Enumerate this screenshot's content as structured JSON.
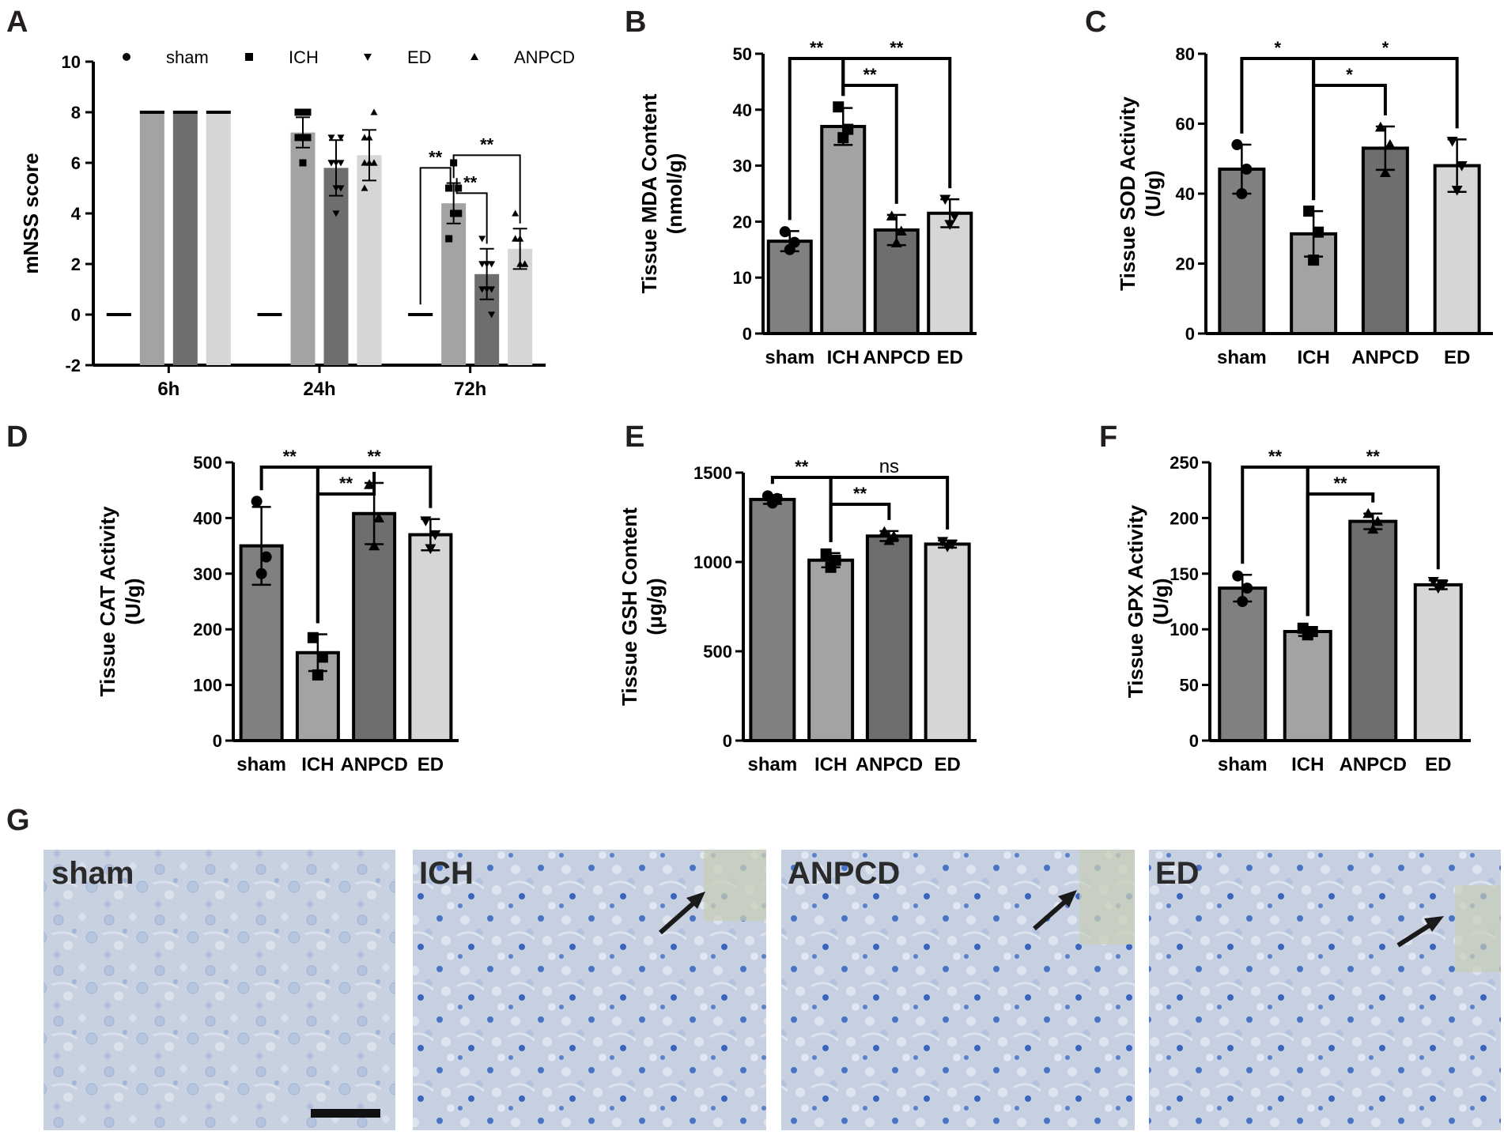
{
  "panel_letters": [
    "A",
    "B",
    "C",
    "D",
    "E",
    "F",
    "G"
  ],
  "colors": {
    "sham": "#808080",
    "ICH": "#a3a3a3",
    "ANPCD": "#6e6e6e",
    "ED": "#d6d6d6",
    "stain_background": "#c9d3e2",
    "stain_cells": "#2f5fbf"
  },
  "chart_data": [
    {
      "panel": "A",
      "type": "bar",
      "ylabel": "mNSS score",
      "xlabel": "",
      "ylim": [
        -2,
        10
      ],
      "yticks": [
        -2,
        0,
        2,
        4,
        6,
        8,
        10
      ],
      "categories": [
        "6h",
        "24h",
        "72h"
      ],
      "legend_position": "top",
      "series": [
        {
          "name": "sham",
          "marker": "circle",
          "values": [
            0,
            0,
            0
          ],
          "errors": [
            0,
            0,
            0
          ]
        },
        {
          "name": "ICH",
          "marker": "square",
          "values": [
            8,
            7.2,
            4.4
          ],
          "errors": [
            0,
            0.6,
            0.8
          ],
          "points": [
            [
              8,
              8,
              8,
              8,
              8,
              8,
              8,
              8,
              8
            ],
            [
              8,
              8,
              7,
              7,
              6,
              8,
              7,
              7,
              7
            ],
            [
              5,
              4,
              4,
              3,
              6,
              4,
              5,
              4,
              5
            ]
          ]
        },
        {
          "name": "ED",
          "marker": "triangle-down",
          "values": [
            8,
            5.8,
            1.6
          ],
          "errors": [
            0,
            1.1,
            1.0
          ],
          "points": [
            [
              8,
              8,
              8,
              8,
              8,
              8,
              8,
              8,
              8
            ],
            [
              7,
              6,
              5,
              6,
              4,
              7,
              6,
              5,
              6
            ],
            [
              3,
              2,
              1,
              2,
              1,
              0,
              1,
              2,
              2
            ]
          ]
        },
        {
          "name": "ANPCD",
          "marker": "triangle-up",
          "values": [
            8,
            6.3,
            2.6
          ],
          "errors": [
            0,
            1.0,
            0.8
          ],
          "points": [
            [
              8,
              8,
              8,
              8,
              8,
              8,
              8,
              8,
              8
            ],
            [
              7,
              7,
              6,
              5,
              6,
              8,
              6,
              6,
              6
            ],
            [
              4,
              3,
              2,
              3,
              2,
              2,
              3,
              3,
              2
            ]
          ]
        }
      ],
      "annotations": [
        {
          "text": "**",
          "group": "72h",
          "from": 0,
          "to": 1
        },
        {
          "text": "**",
          "group": "72h",
          "from": 1,
          "to": 2
        },
        {
          "text": "**",
          "group": "72h",
          "from": 1,
          "to": 3
        }
      ]
    },
    {
      "panel": "B",
      "type": "bar",
      "ylabel": "Tissue MDA Content\n(nmol/g)",
      "xlabel": "",
      "ylim": [
        0,
        50
      ],
      "yticks": [
        0,
        10,
        20,
        30,
        40,
        50
      ],
      "categories": [
        "sham",
        "ICH",
        "ANPCD",
        "ED"
      ],
      "values": [
        16.5,
        37,
        18.5,
        21.5
      ],
      "errors": [
        1.8,
        3.3,
        2.7,
        2.5
      ],
      "points": [
        [
          18.2,
          15,
          16.3
        ],
        [
          40.5,
          35,
          36.5
        ],
        [
          21,
          16.2,
          18.3
        ],
        [
          24,
          19.5,
          21
        ]
      ],
      "annotations": [
        {
          "text": "**",
          "from": 0,
          "to": 1
        },
        {
          "text": "**",
          "from": 1,
          "to": 2
        },
        {
          "text": "**",
          "from": 1,
          "to": 3
        }
      ]
    },
    {
      "panel": "C",
      "type": "bar",
      "ylabel": "Tissue SOD Activity\n(U/g)",
      "xlabel": "",
      "ylim": [
        0,
        80
      ],
      "yticks": [
        0,
        20,
        40,
        60,
        80
      ],
      "categories": [
        "sham",
        "ICH",
        "ANPCD",
        "ED"
      ],
      "values": [
        47,
        28.5,
        53,
        48
      ],
      "errors": [
        7,
        6.5,
        6.2,
        7.5
      ],
      "points": [
        [
          54,
          40,
          47
        ],
        [
          35,
          21,
          29
        ],
        [
          59,
          46,
          54
        ],
        [
          55,
          41,
          48
        ]
      ],
      "annotations": [
        {
          "text": "*",
          "from": 0,
          "to": 1
        },
        {
          "text": "*",
          "from": 1,
          "to": 2
        },
        {
          "text": "*",
          "from": 1,
          "to": 3
        }
      ]
    },
    {
      "panel": "D",
      "type": "bar",
      "ylabel": "Tissue CAT Activity\n(U/g)",
      "xlabel": "",
      "ylim": [
        0,
        500
      ],
      "yticks": [
        0,
        100,
        200,
        300,
        400,
        500
      ],
      "categories": [
        "sham",
        "ICH",
        "ANPCD",
        "ED"
      ],
      "values": [
        350,
        158,
        408,
        370
      ],
      "errors": [
        70,
        33,
        55,
        28
      ],
      "points": [
        [
          430,
          300,
          330
        ],
        [
          185,
          118,
          150
        ],
        [
          460,
          350,
          400
        ],
        [
          395,
          345,
          370
        ]
      ],
      "annotations": [
        {
          "text": "**",
          "from": 0,
          "to": 1
        },
        {
          "text": "**",
          "from": 1,
          "to": 2
        },
        {
          "text": "**",
          "from": 1,
          "to": 3
        }
      ]
    },
    {
      "panel": "E",
      "type": "bar",
      "ylabel": "Tissue GSH Content\n(μg/g)",
      "xlabel": "",
      "ylim": [
        0,
        1500
      ],
      "yticks": [
        0,
        500,
        1000,
        1500
      ],
      "categories": [
        "sham",
        "ICH",
        "ANPCD",
        "ED"
      ],
      "values": [
        1350,
        1010,
        1145,
        1100
      ],
      "errors": [
        25,
        40,
        28,
        20
      ],
      "points": [
        [
          1370,
          1330,
          1355
        ],
        [
          1045,
          970,
          1010
        ],
        [
          1170,
          1120,
          1145
        ],
        [
          1115,
          1085,
          1100
        ]
      ],
      "annotations": [
        {
          "text": "**",
          "from": 0,
          "to": 1
        },
        {
          "text": "**",
          "from": 1,
          "to": 2
        },
        {
          "text": "ns",
          "from": 1,
          "to": 3
        }
      ]
    },
    {
      "panel": "F",
      "type": "bar",
      "ylabel": "Tissue GPX Activity\n(U/g)",
      "xlabel": "",
      "ylim": [
        0,
        250
      ],
      "yticks": [
        0,
        50,
        100,
        150,
        200,
        250
      ],
      "categories": [
        "sham",
        "ICH",
        "ANPCD",
        "ED"
      ],
      "values": [
        137,
        98,
        197,
        140
      ],
      "errors": [
        12,
        4,
        7,
        4
      ],
      "points": [
        [
          148,
          125,
          137
        ],
        [
          101,
          95,
          98
        ],
        [
          204,
          190,
          197
        ],
        [
          143,
          137,
          140
        ]
      ],
      "annotations": [
        {
          "text": "**",
          "from": 0,
          "to": 1
        },
        {
          "text": "**",
          "from": 1,
          "to": 2
        },
        {
          "text": "**",
          "from": 1,
          "to": 3
        }
      ]
    }
  ],
  "micrographs": [
    {
      "label": "sham",
      "arrow": false,
      "scale_bar": true
    },
    {
      "label": "ICH",
      "arrow": true,
      "scale_bar": false
    },
    {
      "label": "ANPCD",
      "arrow": true,
      "scale_bar": false
    },
    {
      "label": "ED",
      "arrow": true,
      "scale_bar": false
    }
  ]
}
